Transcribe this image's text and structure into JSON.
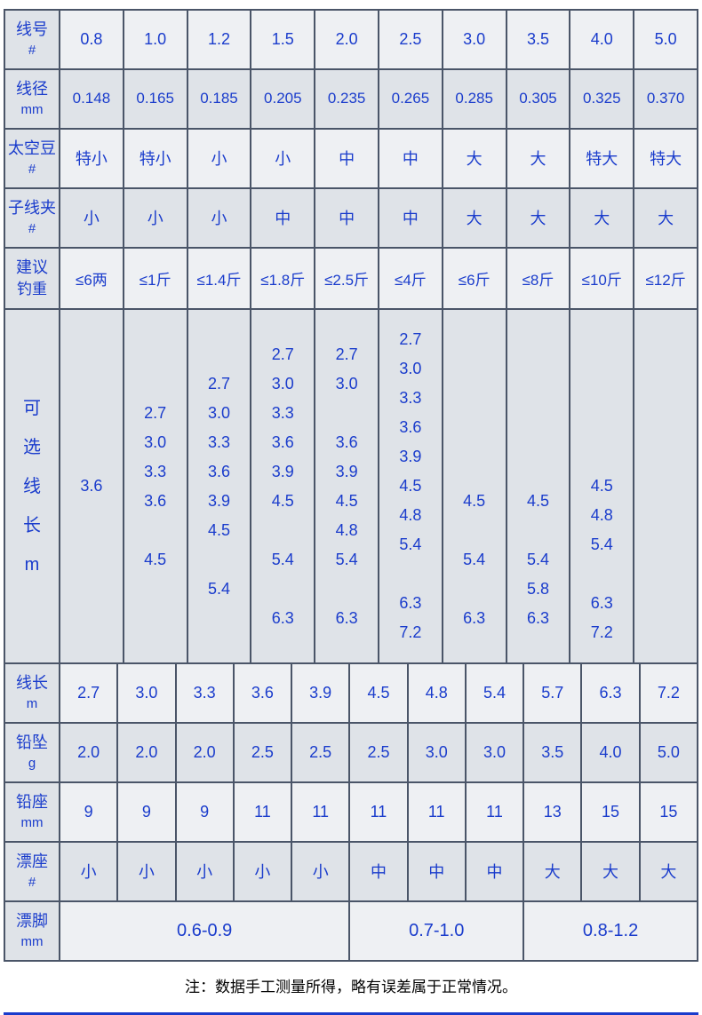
{
  "colors": {
    "text": "#1a3ccc",
    "border": "#4a5568",
    "bg_light": "#eef0f3",
    "bg_dark": "#dfe3e8"
  },
  "headers": {
    "xianhao": {
      "main": "线号",
      "sub": "#"
    },
    "xianjing": {
      "main": "线径",
      "sub": "mm"
    },
    "taikongdou": {
      "main": "太空豆",
      "sub": "#"
    },
    "zixianjia": {
      "main": "子线夹",
      "sub": "#"
    },
    "jianyi": {
      "main": "建议",
      "sub": "钓重"
    },
    "kexuan": {
      "main": "可",
      "l2": "选",
      "l3": "线",
      "l4": "长",
      "sub": "m"
    },
    "xianchang": {
      "main": "线长",
      "sub": "m"
    },
    "qianzhui": {
      "main": "铅坠",
      "sub": "g"
    },
    "qianzuo": {
      "main": "铅座",
      "sub": "mm"
    },
    "piaozuo": {
      "main": "漂座",
      "sub": "#"
    },
    "piaojiao": {
      "main": "漂脚",
      "sub": "mm"
    }
  },
  "section1": {
    "xianhao": [
      "0.8",
      "1.0",
      "1.2",
      "1.5",
      "2.0",
      "2.5",
      "3.0",
      "3.5",
      "4.0",
      "5.0"
    ],
    "xianjing": [
      "0.148",
      "0.165",
      "0.185",
      "0.205",
      "0.235",
      "0.265",
      "0.285",
      "0.305",
      "0.325",
      "0.370"
    ],
    "taikongdou": [
      "特小",
      "特小",
      "小",
      "小",
      "中",
      "中",
      "大",
      "大",
      "特大",
      "特大"
    ],
    "zixianjia": [
      "小",
      "小",
      "小",
      "中",
      "中",
      "中",
      "大",
      "大",
      "大",
      "大"
    ],
    "jianyi": [
      "≤6两",
      "≤1斤",
      "≤1.4斤",
      "≤1.8斤",
      "≤2.5斤",
      "≤4斤",
      "≤6斤",
      "≤8斤",
      "≤10斤",
      "≤12斤"
    ],
    "kexuan": [
      [
        "3.6"
      ],
      [
        "2.7",
        "3.0",
        "3.3",
        "3.6",
        "",
        "4.5"
      ],
      [
        "2.7",
        "3.0",
        "3.3",
        "3.6",
        "3.9",
        "4.5",
        "",
        "5.4"
      ],
      [
        "2.7",
        "3.0",
        "3.3",
        "3.6",
        "3.9",
        "4.5",
        "",
        "5.4",
        "",
        "6.3"
      ],
      [
        "2.7",
        "3.0",
        "",
        "3.6",
        "3.9",
        "4.5",
        "4.8",
        "5.4",
        "",
        "6.3"
      ],
      [
        "2.7",
        "3.0",
        "3.3",
        "3.6",
        "3.9",
        "4.5",
        "4.8",
        "5.4",
        "",
        "6.3",
        "7.2"
      ],
      [
        "",
        "",
        "",
        "",
        "",
        "4.5",
        "",
        "5.4",
        "",
        "6.3"
      ],
      [
        "",
        "",
        "",
        "",
        "",
        "4.5",
        "",
        "5.4",
        "5.8",
        "6.3"
      ],
      [
        "",
        "",
        "",
        "",
        "",
        "4.5",
        "4.8",
        "5.4",
        "",
        "6.3",
        "7.2"
      ],
      [
        ""
      ]
    ]
  },
  "section2": {
    "xianchang": [
      "2.7",
      "3.0",
      "3.3",
      "3.6",
      "3.9",
      "4.5",
      "4.8",
      "5.4",
      "5.7",
      "6.3",
      "7.2"
    ],
    "qianzhui": [
      "2.0",
      "2.0",
      "2.0",
      "2.5",
      "2.5",
      "2.5",
      "3.0",
      "3.0",
      "3.5",
      "4.0",
      "5.0"
    ],
    "qianzuo": [
      "9",
      "9",
      "9",
      "11",
      "11",
      "11",
      "11",
      "11",
      "13",
      "15",
      "15"
    ],
    "piaozuo": [
      "小",
      "小",
      "小",
      "小",
      "小",
      "中",
      "中",
      "中",
      "大",
      "大",
      "大"
    ],
    "piaojiao": [
      {
        "span": 5,
        "v": "0.6-0.9"
      },
      {
        "span": 3,
        "v": "0.7-1.0"
      },
      {
        "span": 3,
        "v": "0.8-1.2"
      }
    ]
  },
  "note": "注：数据手工测量所得，略有误差属于正常情况。"
}
